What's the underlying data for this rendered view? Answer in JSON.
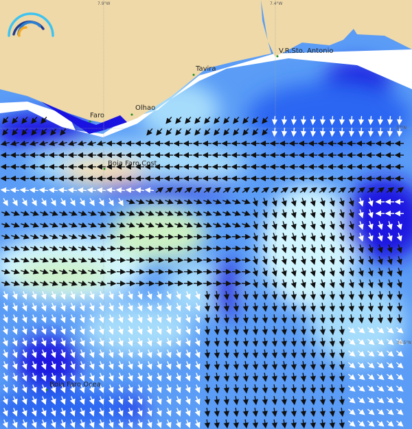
{
  "map": {
    "grid_labels": {
      "lon_1": "7.9°W",
      "lon_2": "7.4°W",
      "lat_1": "37°N",
      "lat_2": "36.5°N"
    },
    "places": [
      {
        "name": "Faro"
      },
      {
        "name": "Olhao"
      },
      {
        "name": "Tavira"
      },
      {
        "name": "V.R.Sto. Antonio"
      }
    ],
    "stations": [
      {
        "name": "Boia Faro Cost"
      },
      {
        "name": "Boia Faro Ocea"
      }
    ],
    "colors": {
      "land": "#efd9a8",
      "deep_blue": "#1a12e0",
      "blue": "#2a66f2",
      "mid_blue": "#5a9cf6",
      "light_blue": "#a6dcfb",
      "cyan": "#d2f6ff",
      "green": "#cdf1c4",
      "orange": "#fde2ad",
      "arrow_dark": "#111111",
      "arrow_light": "#ffffff"
    },
    "logo": "arc-waves-logo"
  }
}
